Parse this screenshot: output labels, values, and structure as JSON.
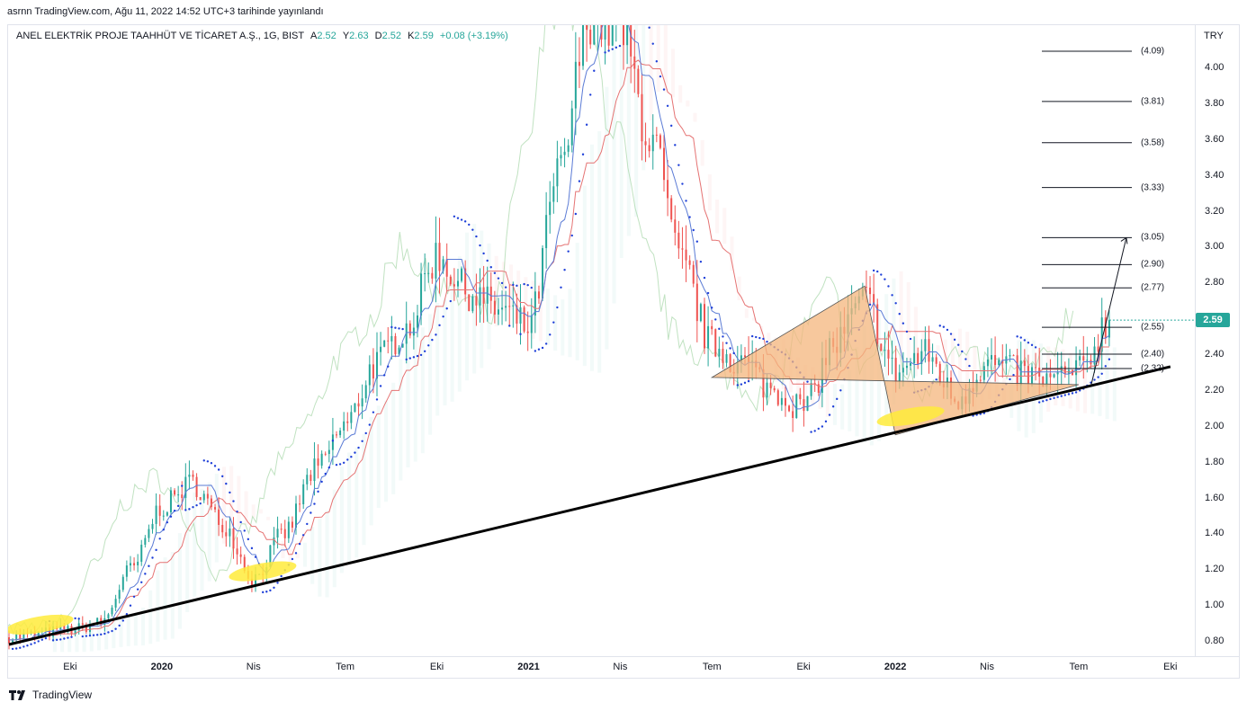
{
  "header": {
    "credit": "asrnn TradingView.com, Ağu 11, 2022 14:52 UTC+3 tarihinde yayınlandı"
  },
  "legend": {
    "symbol": "ANEL ELEKTRİK PROJE TAAHHÜT VE TİCARET A.Ş., 1G, BIST",
    "open_label": "A",
    "open": "2.52",
    "high_label": "Y",
    "high": "2.63",
    "low_label": "D",
    "low": "2.52",
    "close_label": "K",
    "close": "2.59",
    "change": "+0.08 (+3.19%)"
  },
  "price_axis": {
    "currency": "TRY",
    "ticks": [
      "4.00",
      "3.80",
      "3.60",
      "3.40",
      "3.20",
      "3.00",
      "2.80",
      "2.60",
      "2.40",
      "2.20",
      "2.00",
      "1.80",
      "1.60",
      "1.40",
      "1.20",
      "1.00",
      "0.80"
    ],
    "last_price": "2.59"
  },
  "time_axis": {
    "ticks": [
      {
        "label": "Eki",
        "year": false
      },
      {
        "label": "2020",
        "year": true
      },
      {
        "label": "Nis",
        "year": false
      },
      {
        "label": "Tem",
        "year": false
      },
      {
        "label": "Eki",
        "year": false
      },
      {
        "label": "2021",
        "year": true
      },
      {
        "label": "Nis",
        "year": false
      },
      {
        "label": "Tem",
        "year": false
      },
      {
        "label": "Eki",
        "year": false
      },
      {
        "label": "2022",
        "year": true
      },
      {
        "label": "Nis",
        "year": false
      },
      {
        "label": "Tem",
        "year": false
      },
      {
        "label": "Eki",
        "year": false
      }
    ]
  },
  "fib_levels": [
    "(4.09)",
    "(3.81)",
    "(3.58)",
    "(3.33)",
    "(3.05)",
    "(2.90)",
    "(2.77)",
    "(2.55)",
    "(2.40)",
    "(2.32)"
  ],
  "brand": "TradingView",
  "colors": {
    "up": "#26a69a",
    "down": "#ef5350",
    "sar": "#1e3fd8",
    "kijun": "#e57373",
    "tenkan": "#5b7bd5",
    "lagging": "#a5d6a7",
    "triangle_fill": "#f4b57c",
    "trendline": "#000000",
    "highlight": "#ffeb3b",
    "badge": "#26a69a"
  },
  "chart_data": {
    "type": "candlestick",
    "x_axis": [
      "Eki 2019",
      "2020",
      "Nis 2020",
      "Tem 2020",
      "Eki 2020",
      "2021",
      "Nis 2021",
      "Tem 2021",
      "Eki 2021",
      "2022",
      "Nis 2022",
      "Tem 2022",
      "Eki 2022"
    ],
    "ylim": [
      0.75,
      4.2
    ],
    "price_path": [
      {
        "t": "Ağu 2019",
        "price": 0.82
      },
      {
        "t": "Eki 2019",
        "price": 0.86
      },
      {
        "t": "Kas 2019",
        "price": 0.9
      },
      {
        "t": "Ara 2019",
        "price": 1.2
      },
      {
        "t": "2020",
        "price": 1.55
      },
      {
        "t": "Şub 2020",
        "price": 1.68
      },
      {
        "t": "Mar 2020",
        "price": 1.45
      },
      {
        "t": "Nis 2020",
        "price": 1.15
      },
      {
        "t": "May 2020",
        "price": 1.4
      },
      {
        "t": "Haz 2020",
        "price": 1.75
      },
      {
        "t": "Tem 2020",
        "price": 2.0
      },
      {
        "t": "Ağu 2020",
        "price": 2.35
      },
      {
        "t": "Eyl 2020",
        "price": 2.55
      },
      {
        "t": "Eki 2020",
        "price": 2.95
      },
      {
        "t": "Kas 2020",
        "price": 2.75
      },
      {
        "t": "Ara 2020",
        "price": 2.65
      },
      {
        "t": "2021",
        "price": 2.55
      },
      {
        "t": "Şub 2021",
        "price": 3.4
      },
      {
        "t": "Mar 2021",
        "price": 4.3
      },
      {
        "t": "Nis 2021",
        "price": 4.2
      },
      {
        "t": "May 2021",
        "price": 3.6
      },
      {
        "t": "Haz 2021",
        "price": 2.9
      },
      {
        "t": "Tem 2021",
        "price": 2.45
      },
      {
        "t": "Ağu 2021",
        "price": 2.35
      },
      {
        "t": "Eyl 2021",
        "price": 2.2
      },
      {
        "t": "Eki 2021",
        "price": 2.1
      },
      {
        "t": "Kas 2021",
        "price": 2.45
      },
      {
        "t": "Ara 2021",
        "price": 2.7
      },
      {
        "t": "2022",
        "price": 2.3
      },
      {
        "t": "Şub 2022",
        "price": 2.4
      },
      {
        "t": "Mar 2022",
        "price": 2.15
      },
      {
        "t": "Nis 2022",
        "price": 2.35
      },
      {
        "t": "May 2022",
        "price": 2.3
      },
      {
        "t": "Haz 2022",
        "price": 2.25
      },
      {
        "t": "Tem 2022",
        "price": 2.3
      },
      {
        "t": "Ağu 2022",
        "price": 2.59
      }
    ],
    "last": {
      "open": 2.52,
      "high": 2.63,
      "low": 2.52,
      "close": 2.59
    },
    "annotations": {
      "trendline": [
        {
          "t": "Ağu 2019",
          "price": 0.78
        },
        {
          "t": "Eki 2022",
          "price": 2.33
        }
      ],
      "triangle": [
        {
          "t": "Tem 2021",
          "price": 2.27
        },
        {
          "t": "Ara 2021",
          "price": 2.78
        },
        {
          "t": "2022",
          "price": 1.95
        },
        {
          "t": "Tem 2022",
          "price": 2.23
        }
      ],
      "target_arrow": [
        {
          "t": "Tem 2022",
          "price": 2.23
        },
        {
          "t": "Ağu 2022",
          "price": 3.05
        }
      ],
      "fib_levels": [
        4.09,
        3.81,
        3.58,
        3.33,
        3.05,
        2.9,
        2.77,
        2.55,
        2.4,
        2.32
      ]
    }
  }
}
